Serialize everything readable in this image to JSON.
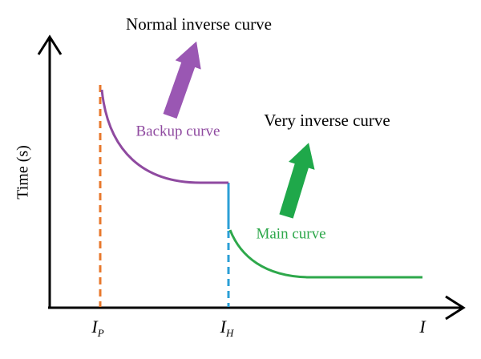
{
  "annotations": {
    "normal": "Normal inverse curve",
    "very": "Very inverse curve",
    "backup": "Backup curve",
    "main": "Main curve"
  },
  "axis": {
    "y_label": "Time (s)",
    "x_labels": [
      {
        "base": "I",
        "sub": "P"
      },
      {
        "base": "I",
        "sub": "H"
      },
      {
        "base": "I"
      }
    ]
  }
}
